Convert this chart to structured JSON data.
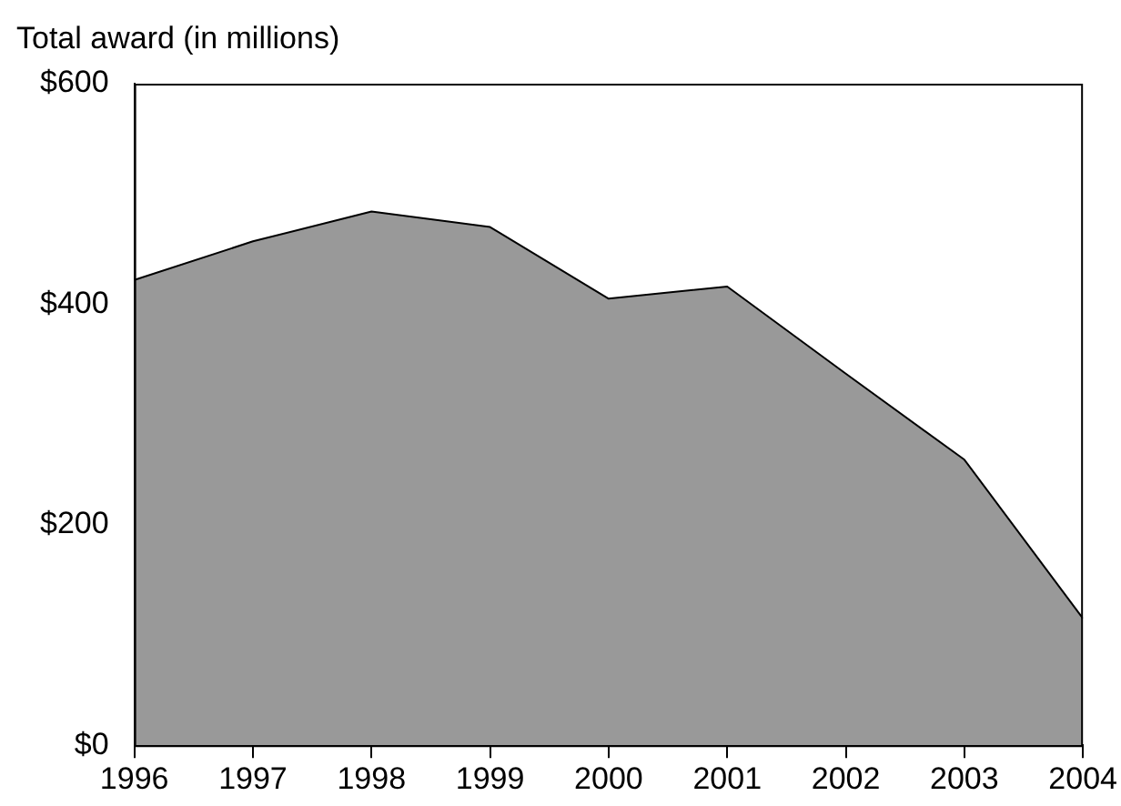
{
  "chart_data": {
    "type": "area",
    "ylabel": "Total award (in millions)",
    "x": [
      1996,
      1997,
      1998,
      1999,
      2000,
      2001,
      2002,
      2003,
      2004
    ],
    "series": [
      {
        "color": "#999999",
        "values": [
          422,
          457,
          484,
          470,
          405,
          416,
          337,
          259,
          115
        ]
      }
    ],
    "xlim": [
      1996,
      2004
    ],
    "xticks": [
      1996,
      1997,
      1998,
      1999,
      2000,
      2001,
      2002,
      2003,
      2004
    ],
    "ylim": [
      0,
      600
    ],
    "yticks": [
      {
        "value": 0,
        "label": "$0"
      },
      {
        "value": 200,
        "label": "$200"
      },
      {
        "value": 400,
        "label": "$400"
      },
      {
        "value": 600,
        "label": "$600"
      }
    ],
    "grid": false,
    "legend": false
  }
}
